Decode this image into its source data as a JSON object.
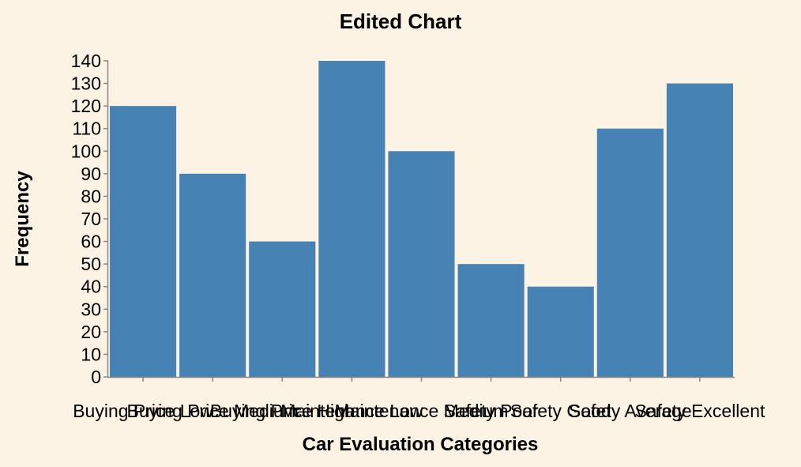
{
  "chart_data": {
    "type": "bar",
    "title": "Edited Chart",
    "xlabel": "Car Evaluation Categories",
    "ylabel": "Frequency",
    "categories": [
      "Buying Price Low",
      "Buying Price Medium",
      "Buying Price High",
      "Maintenance Low",
      "Maintenance Medium",
      "Safety Poor",
      "Safety Good",
      "Safety Average",
      "Safety Excellent"
    ],
    "values": [
      120,
      90,
      60,
      140,
      100,
      50,
      40,
      110,
      130
    ],
    "ylim": [
      0,
      140
    ],
    "yticks": [
      0,
      10,
      20,
      30,
      40,
      50,
      60,
      70,
      80,
      90,
      100,
      110,
      120,
      130,
      140
    ],
    "grid": false,
    "legend": "none",
    "bar_color": "#4682b4",
    "background": "#fdf3e4"
  }
}
